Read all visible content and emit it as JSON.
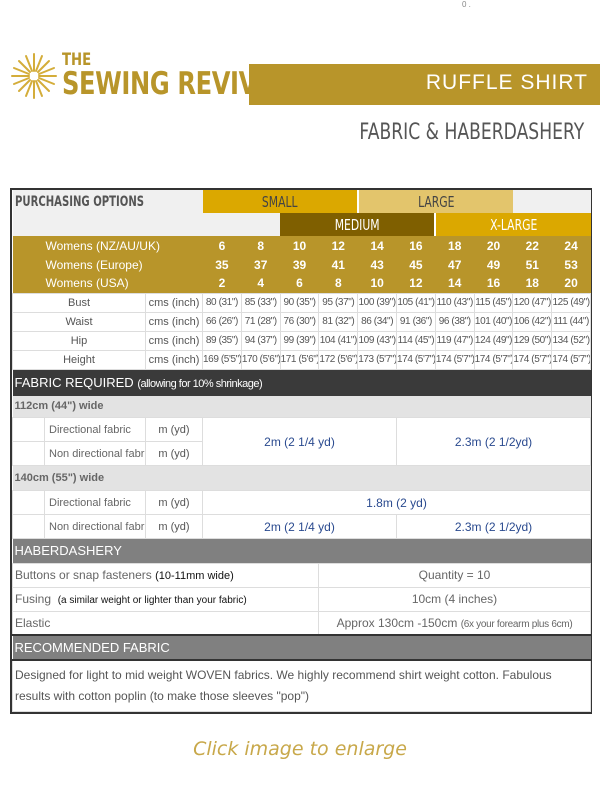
{
  "brand": {
    "line1": "THE",
    "line2": "SEWING REVIVAL"
  },
  "banner": {
    "title": "RUFFLE SHIRT",
    "subtitle": "FABRIC & HABERDASHERY"
  },
  "colors": {
    "gold": "#b8952a",
    "small": "#dba800",
    "large": "#e3c56c",
    "medium": "#7f5f00",
    "xlarge": "#dba800",
    "section_dark": "#3a3a3a",
    "section_gray": "#808080",
    "value_blue": "#2a4a8f"
  },
  "purchasing": {
    "label": "PURCHASING OPTIONS",
    "small": "SMALL",
    "large": "LARGE",
    "medium": "MEDIUM",
    "xlarge": "X-LARGE"
  },
  "size_rows": [
    {
      "label": "Womens (NZ/AU/UK)",
      "values": [
        "6",
        "8",
        "10",
        "12",
        "14",
        "16",
        "18",
        "20",
        "22",
        "24"
      ]
    },
    {
      "label": "Womens (Europe)",
      "values": [
        "35",
        "37",
        "39",
        "41",
        "43",
        "45",
        "47",
        "49",
        "51",
        "53"
      ]
    },
    {
      "label": "Womens (USA)",
      "values": [
        "2",
        "4",
        "6",
        "8",
        "10",
        "12",
        "14",
        "16",
        "18",
        "20"
      ]
    }
  ],
  "measurements": [
    {
      "label": "Bust",
      "unit": "cms (inch)",
      "values": [
        "80 (31\")",
        "85 (33\")",
        "90 (35\")",
        "95 (37\")",
        "100 (39\")",
        "105 (41\")",
        "110 (43\")",
        "115 (45\")",
        "120 (47\")",
        "125 (49\")"
      ]
    },
    {
      "label": "Waist",
      "unit": "cms (inch)",
      "values": [
        "66 (26\")",
        "71 (28\")",
        "76 (30\")",
        "81 (32\")",
        "86 (34\")",
        "91 (36\")",
        "96 (38\")",
        "101 (40\")",
        "106 (42\")",
        "111 (44\")"
      ]
    },
    {
      "label": "Hip",
      "unit": "cms (inch)",
      "values": [
        "89 (35\")",
        "94 (37\")",
        "99 (39\")",
        "104 (41\")",
        "109 (43\")",
        "114 (45\")",
        "119 (47\")",
        "124 (49\")",
        "129 (50\")",
        "134 (52\")"
      ]
    },
    {
      "label": "Height",
      "unit": "cms (inch)",
      "values": [
        "169 (5'5\")",
        "170 (5'6\")",
        "171 (5'6\")",
        "172 (5'6\")",
        "173 (5'7\")",
        "174 (5'7\")",
        "174 (5'7\")",
        "174 (5'7\")",
        "174 (5'7\")",
        "174 (5'7\")"
      ]
    }
  ],
  "fabric": {
    "header": "FABRIC REQUIRED",
    "header_note": "(allowing for 10% shrinkage)",
    "w112": {
      "label": "112cm (44\") wide",
      "directional": "Directional fabric",
      "non_directional": "Non directional fabric",
      "unit": "m (yd)",
      "value_small_medium": "2m  (2 1/4 yd)",
      "value_large_xlarge": "2.3m (2 1/2yd)"
    },
    "w140": {
      "label": "140cm (55\") wide",
      "directional": "Directional fabric",
      "non_directional": "Non directional fabric",
      "unit": "m (yd)",
      "directional_value": "1.8m (2 yd)",
      "value_small_medium": "2m  (2 1/4 yd)",
      "value_large_xlarge": "2.3m (2 1/2yd)"
    }
  },
  "haberdashery": {
    "header": "HABERDASHERY",
    "buttons": {
      "label": "Buttons or snap fasteners",
      "note": "(10-11mm wide)",
      "value": "Quantity = 10"
    },
    "fusing": {
      "label": "Fusing",
      "note": "(a similar weight or lighter than your fabric)",
      "value": "10cm (4 inches)"
    },
    "elastic": {
      "label": "Elastic",
      "value": "Approx 130cm -150cm",
      "note": "(6x your forearm plus 6cm)"
    }
  },
  "recommended": {
    "header": "RECOMMENDED FABRIC",
    "text": "Designed for light to mid weight WOVEN fabrics. We highly recommend shirt weight cotton. Fabulous results with cotton poplin (to make those sleeves \"pop\")"
  },
  "footer": {
    "click": "Click image to enlarge"
  }
}
